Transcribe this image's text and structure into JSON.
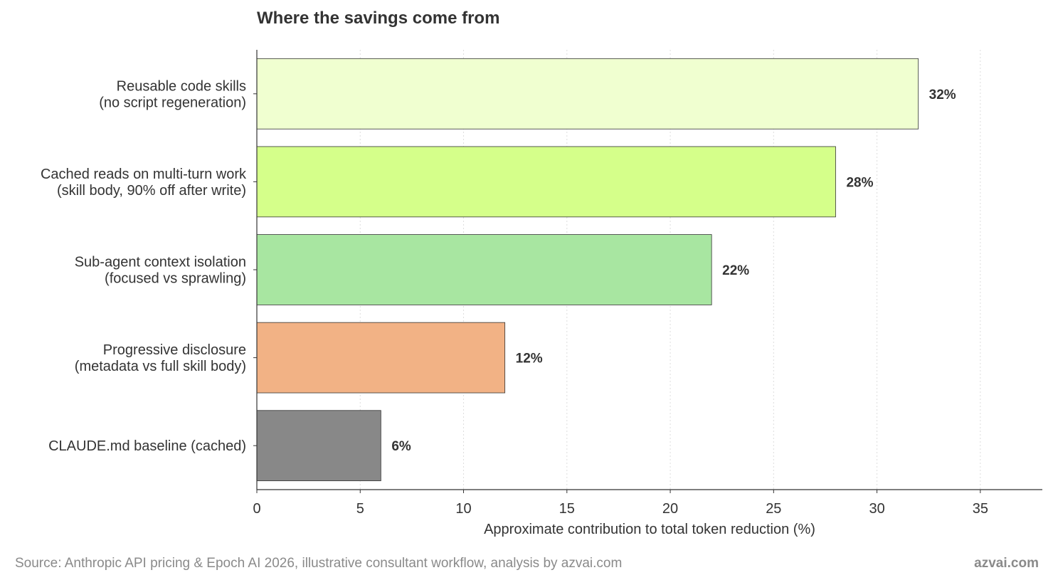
{
  "chart_data": {
    "type": "bar",
    "orientation": "horizontal",
    "title": "Where the savings come from",
    "xlabel": "Approximate contribution to total token reduction (%)",
    "ylabel": "",
    "xlim": [
      0,
      38
    ],
    "xticks": [
      0,
      5,
      10,
      15,
      20,
      25,
      30,
      35
    ],
    "grid": "vertical dotted",
    "categories": [
      {
        "lines": [
          "Reusable code skills",
          "(no script regeneration)"
        ],
        "value": 32,
        "label": "32%",
        "color": "#f0ffd0"
      },
      {
        "lines": [
          "Cached reads on multi-turn work",
          "(skill body, 90% off after write)"
        ],
        "value": 28,
        "label": "28%",
        "color": "#d5ff8a"
      },
      {
        "lines": [
          "Sub-agent context isolation",
          "(focused vs sprawling)"
        ],
        "value": 22,
        "label": "22%",
        "color": "#a8e6a1"
      },
      {
        "lines": [
          "Progressive disclosure",
          "(metadata vs full skill body)"
        ],
        "value": 12,
        "label": "12%",
        "color": "#f2b285"
      },
      {
        "lines": [
          "CLAUDE.md baseline (cached)"
        ],
        "value": 6,
        "label": "6%",
        "color": "#888888"
      }
    ]
  },
  "footer": {
    "source": "Source: Anthropic API pricing & Epoch AI 2026, illustrative consultant workflow, analysis by azvai.com",
    "brand": "azvai.com"
  }
}
